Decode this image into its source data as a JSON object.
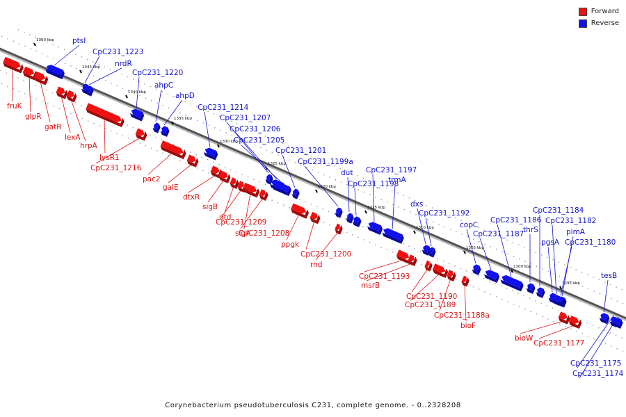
{
  "legend": {
    "forward_label": "Forward",
    "reverse_label": "Reverse",
    "forward_color": "#ee1111",
    "reverse_color": "#1111ee"
  },
  "caption": "Corynebacterium pseudotuberculosis C231, complete genome. - 0..2328208",
  "ticks": [
    "1350 kbp",
    "1345 kbp",
    "1340 kbp",
    "1335 kbp",
    "1330 kbp",
    "1325 kbp",
    "1320 kbp",
    "1315 kbp",
    "1310 kbp",
    "1305 kbp",
    "1300 kbp",
    "1295 kbp"
  ],
  "reverse_genes": [
    "ptsI",
    "CpC231_1223",
    "nrdR",
    "CpC231_1220",
    "ahpC",
    "ahpD",
    "CpC231_1214",
    "CpC231_1207",
    "CpC231_1206",
    "CpC231_1205",
    "CpC231_1201",
    "CpC231_1199a",
    "dut",
    "CpC231_1198",
    "CpC231_1197",
    "trmA",
    "dxs",
    "CpC231_1192",
    "copC",
    "CpC231_1187",
    "CpC231_1186",
    "thrS",
    "CpC231_1184",
    "pgsA",
    "CpC231_1182",
    "pimA",
    "CpC231_1180",
    "tesB",
    "CpC231_1175",
    "CpC231_1174"
  ],
  "forward_genes": [
    "fruK",
    "glpR",
    "gatR",
    "lexA",
    "hrpA",
    "lysR1",
    "CpC231_1216",
    "pac2",
    "galE",
    "dtxR",
    "sigB",
    "dtd",
    "CpC231_1209",
    "CpC231_1208",
    "sigA",
    "ppgk",
    "CpC231_1200",
    "rnd",
    "CpC231_1193",
    "msrB",
    "CpC231_1190",
    "CpC231_1189",
    "CpC231_1188a",
    "bioF",
    "bioW",
    "CpC231_1177"
  ]
}
